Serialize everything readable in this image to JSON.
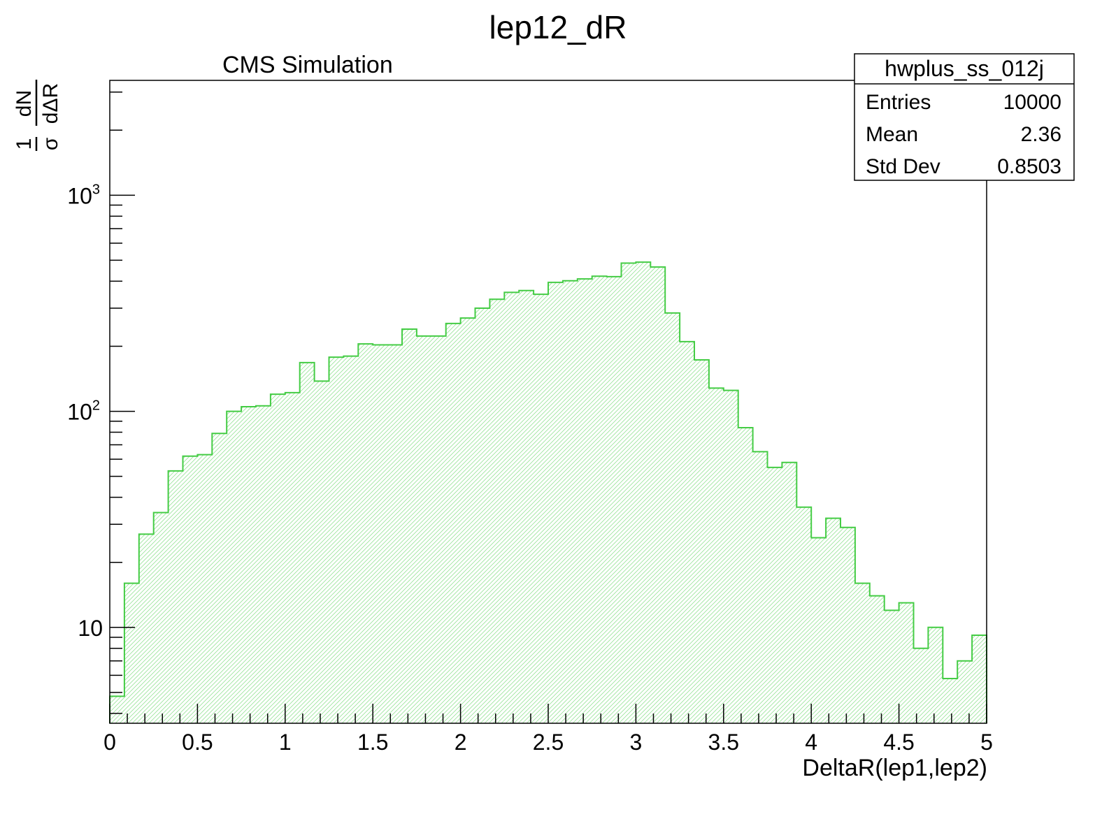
{
  "chart_data": {
    "type": "bar",
    "title": "lep12_dR",
    "subtitle": "CMS Simulation",
    "xlabel": "DeltaR(lep1,lep2)",
    "ylabel": {
      "numerator_left": "1",
      "denominator_left": "σ",
      "numerator_right": "dN",
      "denominator_right": "dΔR"
    },
    "xlim": [
      0,
      5
    ],
    "ylim": [
      3.6,
      3400
    ],
    "yscale": "log",
    "grid": false,
    "legend": "none",
    "x_ticks": [
      "0",
      "0.5",
      "1",
      "1.5",
      "2",
      "2.5",
      "3",
      "3.5",
      "4",
      "4.5",
      "5"
    ],
    "x_tick_values": [
      0,
      0.5,
      1,
      1.5,
      2,
      2.5,
      3,
      3.5,
      4,
      4.5,
      5
    ],
    "y_ticks": [
      {
        "value": 10,
        "base": "10",
        "exp": ""
      },
      {
        "value": 100,
        "base": "10",
        "exp": "2"
      },
      {
        "value": 1000,
        "base": "10",
        "exp": "3"
      }
    ],
    "bin_edges_step": 0.08333,
    "values": [
      4.8,
      16,
      27,
      34,
      53,
      62,
      63,
      79,
      100,
      105,
      106,
      120,
      122,
      168,
      138,
      178,
      180,
      205,
      203,
      203,
      240,
      223,
      223,
      255,
      270,
      300,
      330,
      355,
      362,
      348,
      395,
      402,
      410,
      422,
      420,
      485,
      490,
      465,
      285,
      210,
      173,
      128,
      125,
      84,
      65,
      55,
      58,
      36,
      26,
      32,
      29,
      16,
      14,
      12,
      13,
      8,
      10,
      5.8,
      7,
      9.2
    ],
    "line_color": "#44cc44",
    "fill_color": "#44cc44",
    "stats_box": {
      "name": "hwplus_ss_012j",
      "rows": [
        {
          "label": "Entries",
          "value": "10000"
        },
        {
          "label": "Mean",
          "value": "2.36"
        },
        {
          "label": "Std Dev",
          "value": "0.8503"
        }
      ]
    }
  }
}
